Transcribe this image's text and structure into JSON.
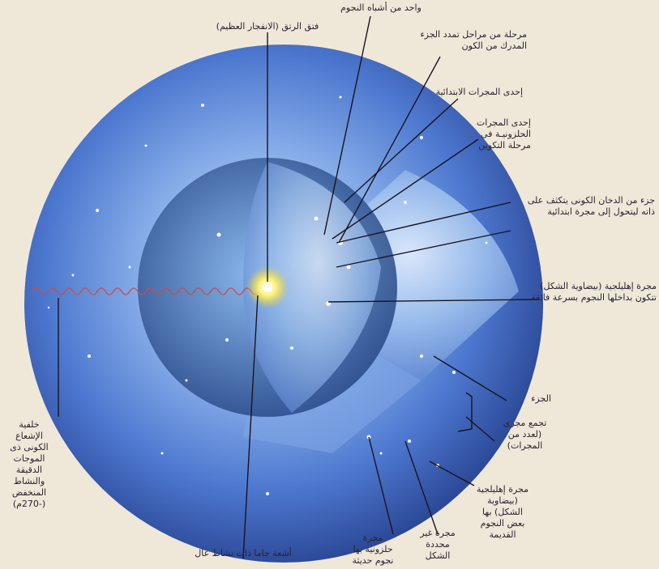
{
  "labels": {
    "big_bang": "فتق الرتق (الانفجار العظيم)",
    "star_like": "واحد من أشباه النجوم",
    "expansion_stage": [
      "مرحلة من مراحل تمدد الجزء",
      "المدرك من الكون"
    ],
    "primitive_galaxy": "إحدى المجرات الابتدائية",
    "spiral_forming": [
      "إحدى المجرات",
      "الحلزونيـة فى",
      "مرحلة التكوين"
    ],
    "smoke_part": [
      "جزء من الدخان الكونى يتكثف على",
      "ذاته ليتحول إلى مجرة ابتدائية"
    ],
    "elliptical_fast": [
      "مجرة إهليلجية (بيضاوية الشكل)",
      "تتكون بداخلها النجوم بسرعة فائقة"
    ],
    "part": "الجزء",
    "galaxy_cluster": [
      "تجمع مجرى",
      "(لعدد من",
      "المجرات)"
    ],
    "elliptical_old": [
      "مجرة إهليلجية",
      "(بيضاوية",
      "الشكل) بها",
      "بعض النجوم",
      "القديمة"
    ],
    "irregular_galaxy": [
      "مجرة غير",
      "محددة",
      "الشكل"
    ],
    "spiral_young": [
      "مجرة",
      "حلزونية بها",
      "نجوم حديثة"
    ],
    "gamma_rays": "أشعة جاما ذات نشاط عال",
    "background_radiation": [
      "خلفية",
      "الإشعاع",
      "الكونى ذى",
      "الموجات",
      "الدقيقة",
      "والنشاط",
      "المنخفض",
      "(-270م)"
    ]
  },
  "colors": {
    "background": "#efe8d9",
    "sphere_outer": "#3a5fb8",
    "sphere_inner": "#9cc0ea",
    "label_text": "#2a2230",
    "wave": "#c0504d",
    "burst": "#ffe24a"
  }
}
